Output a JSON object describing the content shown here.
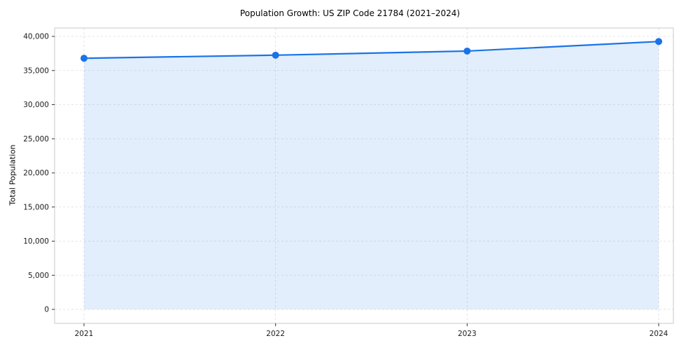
{
  "chart_data": {
    "type": "area",
    "title": "Population Growth: US ZIP Code 21784 (2021–2024)",
    "ylabel": "Total Population",
    "xlabel": "",
    "x": [
      2021,
      2022,
      2023,
      2024
    ],
    "series": [
      {
        "name": "Total Population",
        "values": [
          36800,
          37250,
          37850,
          39250
        ]
      }
    ],
    "ylim": [
      0,
      40000
    ],
    "ytick_step": 5000,
    "grid": true,
    "grid_style": "dashed",
    "legend_position": "none",
    "marker": "circle",
    "colors": {
      "line": "#1a73e8",
      "marker": "#1a73e8",
      "fill": "#1a73e8",
      "fill_opacity": 0.12,
      "grid": "#dddddd",
      "frame": "#c8c8c8",
      "tick_text": "#1a1a1a",
      "background": "#ffffff"
    }
  }
}
